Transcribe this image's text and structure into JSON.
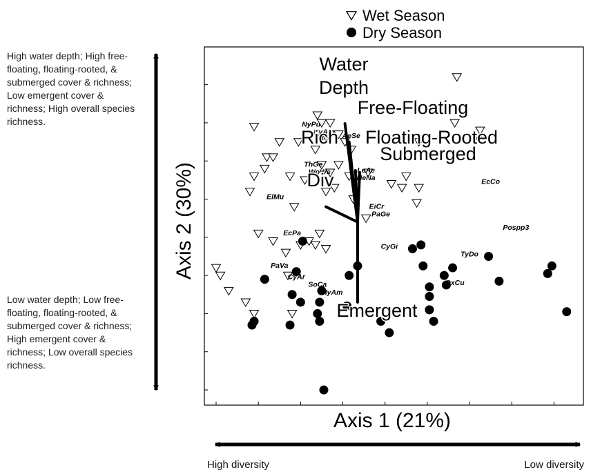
{
  "notes": {
    "top": "High water depth; High free-floating, floating-rooted, & submerged cover & richness; Low emergent cover & richness; High overall species richness.",
    "bottom": "Low water depth; Low free-floating, floating-rooted, & submerged cover & richness; High emergent cover & richness; Low overall species richness."
  },
  "chart_data": {
    "type": "scatter",
    "xlabel": "Axis 1 (21%)",
    "ylabel": "Axis 2 (30%)",
    "xlim": [
      0,
      8.5
    ],
    "ylim": [
      0,
      8.5
    ],
    "grid": false,
    "legend_position": "top-center",
    "x_gradient": {
      "left": "High diversity",
      "right": "Low diversity"
    },
    "series": [
      {
        "name": "Wet Season",
        "marker": "open-triangle-down",
        "points": [
          [
            0,
            3.2
          ],
          [
            0.1,
            3.0
          ],
          [
            0.9,
            6.9
          ],
          [
            1.2,
            6.1
          ],
          [
            1.35,
            6.1
          ],
          [
            1.5,
            6.5
          ],
          [
            1.75,
            5.6
          ],
          [
            0.8,
            5.2
          ],
          [
            0.9,
            5.6
          ],
          [
            1.65,
            3.6
          ],
          [
            1.0,
            4.1
          ],
          [
            1.15,
            5.8
          ],
          [
            1.7,
            3.0
          ],
          [
            1.85,
            4.8
          ],
          [
            1.95,
            6.5
          ],
          [
            2.4,
            7.2
          ],
          [
            2.5,
            7.0
          ],
          [
            2.35,
            6.3
          ],
          [
            2.5,
            5.9
          ],
          [
            2.7,
            5.7
          ],
          [
            2.1,
            5.5
          ],
          [
            2.0,
            3.8
          ],
          [
            2.2,
            3.9
          ],
          [
            2.35,
            3.8
          ],
          [
            2.45,
            4.1
          ],
          [
            2.6,
            3.7
          ],
          [
            2.7,
            7.0
          ],
          [
            2.9,
            6.7
          ],
          [
            3.05,
            6.5
          ],
          [
            2.9,
            5.9
          ],
          [
            3.2,
            6.3
          ],
          [
            3.15,
            5.6
          ],
          [
            2.8,
            5.3
          ],
          [
            2.6,
            5.2
          ],
          [
            3.25,
            5.0
          ],
          [
            3.55,
            4.5
          ],
          [
            3.6,
            5.7
          ],
          [
            4.15,
            5.4
          ],
          [
            4.5,
            5.6
          ],
          [
            4.8,
            5.3
          ],
          [
            4.4,
            5.3
          ],
          [
            4.75,
            4.9
          ],
          [
            4.8,
            6.5
          ],
          [
            5.65,
            7.0
          ],
          [
            5.7,
            8.2
          ],
          [
            6.25,
            6.8
          ],
          [
            1.35,
            3.9
          ],
          [
            0.9,
            2.0
          ],
          [
            0.7,
            2.3
          ],
          [
            0.3,
            2.6
          ],
          [
            1.8,
            2.0
          ]
        ]
      },
      {
        "name": "Dry Season",
        "marker": "filled-circle",
        "points": [
          [
            0.9,
            1.8
          ],
          [
            0.85,
            1.7
          ],
          [
            1.15,
            2.9
          ],
          [
            1.8,
            2.5
          ],
          [
            1.9,
            3.1
          ],
          [
            2.0,
            2.3
          ],
          [
            1.75,
            1.7
          ],
          [
            2.05,
            3.9
          ],
          [
            2.45,
            2.3
          ],
          [
            2.4,
            2.0
          ],
          [
            2.45,
            1.8
          ],
          [
            2.5,
            2.6
          ],
          [
            3.15,
            3.0
          ],
          [
            3.1,
            2.2
          ],
          [
            3.35,
            3.25
          ],
          [
            3.9,
            1.8
          ],
          [
            4.1,
            1.5
          ],
          [
            4.65,
            3.7
          ],
          [
            4.9,
            3.25
          ],
          [
            4.85,
            3.8
          ],
          [
            5.05,
            2.45
          ],
          [
            5.05,
            2.1
          ],
          [
            5.15,
            1.8
          ],
          [
            5.05,
            2.7
          ],
          [
            5.45,
            2.75
          ],
          [
            5.4,
            3.0
          ],
          [
            5.6,
            3.2
          ],
          [
            6.45,
            3.5
          ],
          [
            6.7,
            2.85
          ],
          [
            7.85,
            3.05
          ],
          [
            7.95,
            3.25
          ],
          [
            8.3,
            2.05
          ],
          [
            2.55,
            0.0
          ]
        ]
      }
    ],
    "species_labels": [
      {
        "text": "NyPu",
        "x": 2.25,
        "y": 6.9
      },
      {
        "text": "NyAm",
        "x": 2.55,
        "y": 6.7
      },
      {
        "text": "UtGi",
        "x": 2.55,
        "y": 6.55
      },
      {
        "text": "AeSe",
        "x": 3.2,
        "y": 6.6
      },
      {
        "text": "NaAr",
        "x": 6.3,
        "y": 6.55
      },
      {
        "text": "ThGe",
        "x": 2.3,
        "y": 5.85
      },
      {
        "text": "WoWe",
        "x": 2.45,
        "y": 5.65
      },
      {
        "text": "LeAe",
        "x": 3.55,
        "y": 5.7
      },
      {
        "text": "NeNa",
        "x": 3.55,
        "y": 5.5
      },
      {
        "text": "EcCo",
        "x": 6.5,
        "y": 5.4
      },
      {
        "text": "ElMu",
        "x": 1.4,
        "y": 5.0
      },
      {
        "text": "EiCr",
        "x": 3.8,
        "y": 4.75
      },
      {
        "text": "PaGe",
        "x": 3.9,
        "y": 4.55
      },
      {
        "text": "Pospp3",
        "x": 7.1,
        "y": 4.2
      },
      {
        "text": "EcPa",
        "x": 1.8,
        "y": 4.05
      },
      {
        "text": "CyGi",
        "x": 4.1,
        "y": 3.7
      },
      {
        "text": "TyDo",
        "x": 6.0,
        "y": 3.5
      },
      {
        "text": "PaVa",
        "x": 1.5,
        "y": 3.2
      },
      {
        "text": "CyAr",
        "x": 1.9,
        "y": 2.9
      },
      {
        "text": "SoCa",
        "x": 2.4,
        "y": 2.7
      },
      {
        "text": "OxCu",
        "x": 5.65,
        "y": 2.75
      },
      {
        "text": "HyAm",
        "x": 2.75,
        "y": 2.5
      }
    ],
    "vectors": {
      "origin": [
        3.35,
        4.4
      ],
      "items": [
        {
          "label": "Water Depth",
          "x": 3.05,
          "y": 6.98
        },
        {
          "label": "Free-Floating",
          "x": 3.15,
          "y": 6.5
        },
        {
          "label": "Rich",
          "x": 3.2,
          "y": 5.9
        },
        {
          "label": "Floating-Rooted",
          "x": 3.3,
          "y": 5.75
        },
        {
          "label": "Submerged",
          "x": 3.4,
          "y": 5.7
        },
        {
          "label": "Div",
          "x": 2.6,
          "y": 4.8
        },
        {
          "label": "Emergent",
          "x": 3.35,
          "y": 2.3
        }
      ]
    }
  }
}
